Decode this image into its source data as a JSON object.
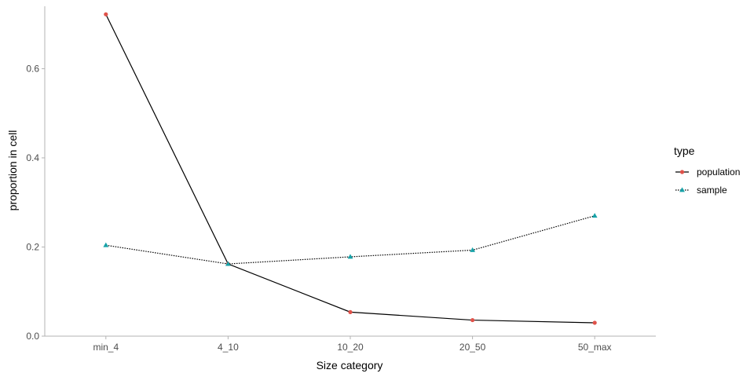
{
  "chart_data": {
    "type": "line",
    "categories": [
      "min_4",
      "4_10",
      "10_20",
      "20_50",
      "50_max"
    ],
    "series": [
      {
        "name": "population",
        "values": [
          0.722,
          0.162,
          0.054,
          0.036,
          0.03
        ],
        "color": "#e0524a",
        "line_style": "solid",
        "marker": "circle"
      },
      {
        "name": "sample",
        "values": [
          0.204,
          0.162,
          0.178,
          0.193,
          0.27
        ],
        "color": "#17a2a8",
        "line_style": "dotted",
        "marker": "triangle"
      }
    ],
    "xlabel": "Size category",
    "ylabel": "proportion in cell",
    "ylim": [
      0,
      0.74
    ],
    "yticks": [
      0.0,
      0.2,
      0.4,
      0.6
    ],
    "ytick_labels": [
      "0.0",
      "0.2",
      "0.4",
      "0.6"
    ],
    "grid": false,
    "legend": {
      "title": "type",
      "position": "right"
    }
  }
}
